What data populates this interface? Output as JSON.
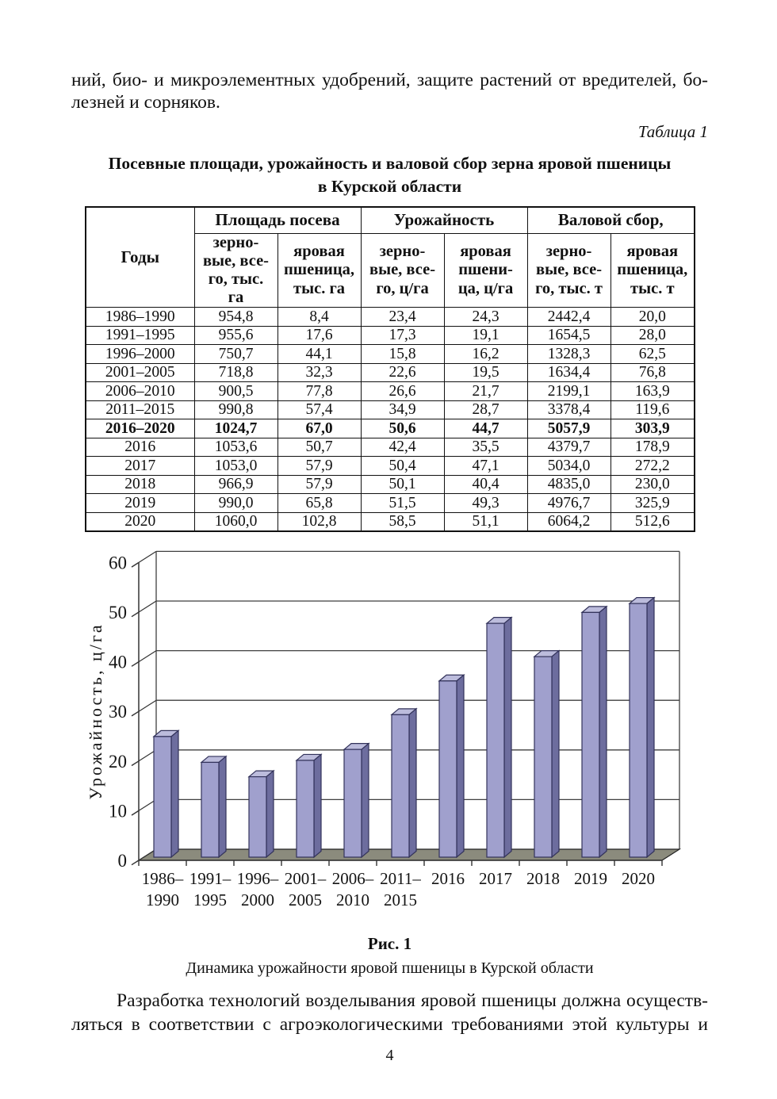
{
  "page": {
    "paragraph_top": [
      "ний, био- и микроэлементных удобрений, защите растений от вредителей, бо-",
      "лезней и сорняков."
    ],
    "table_label": "Таблица 1",
    "table_title": "Посевные площади, урожайность и валовой сбор зерна яровой пшеницы\nв Курской области",
    "figure_label": "Рис. 1",
    "figure_caption": "Динамика урожайности яровой пшеницы в Курской области",
    "paragraph_bottom": [
      "Разработка технологий возделывания яровой пшеницы должна осуществ-",
      "ляться в соответствии с агроэкологическими требованиями этой культуры и"
    ],
    "page_number": "4"
  },
  "table": {
    "corner_header": "Годы",
    "col_groups": [
      {
        "label": "Площадь посева",
        "span": 2
      },
      {
        "label": "Урожайность",
        "span": 2
      },
      {
        "label": "Валовой сбор,",
        "span": 2
      }
    ],
    "sub_headers": [
      "зерно-\nвые, все-\nго, тыс.\nга",
      "яровая\nпшеница,\nтыс. га",
      "зерно-\nвые, все-\nго, ц/га",
      "яровая\nпшени-\nца, ц/га",
      "зерно-\nвые, все-\nго, тыс. т",
      "яровая\nпшеница,\nтыс. т"
    ],
    "rows": [
      {
        "year": "1986–1990",
        "values": [
          "954,8",
          "8,4",
          "23,4",
          "24,3",
          "2442,4",
          "20,0"
        ],
        "emphasis": false
      },
      {
        "year": "1991–1995",
        "values": [
          "955,6",
          "17,6",
          "17,3",
          "19,1",
          "1654,5",
          "28,0"
        ],
        "emphasis": false
      },
      {
        "year": "1996–2000",
        "values": [
          "750,7",
          "44,1",
          "15,8",
          "16,2",
          "1328,3",
          "62,5"
        ],
        "emphasis": false
      },
      {
        "year": "2001–2005",
        "values": [
          "718,8",
          "32,3",
          "22,6",
          "19,5",
          "1634,4",
          "76,8"
        ],
        "emphasis": false
      },
      {
        "year": "2006–2010",
        "values": [
          "900,5",
          "77,8",
          "26,6",
          "21,7",
          "2199,1",
          "163,9"
        ],
        "emphasis": false
      },
      {
        "year": "2011–2015",
        "values": [
          "990,8",
          "57,4",
          "34,9",
          "28,7",
          "3378,4",
          "119,6"
        ],
        "emphasis": false
      },
      {
        "year": "2016–2020",
        "values": [
          "1024,7",
          "67,0",
          "50,6",
          "44,7",
          "5057,9",
          "303,9"
        ],
        "emphasis": true
      },
      {
        "year": "2016",
        "values": [
          "1053,6",
          "50,7",
          "42,4",
          "35,5",
          "4379,7",
          "178,9"
        ],
        "emphasis": false
      },
      {
        "year": "2017",
        "values": [
          "1053,0",
          "57,9",
          "50,4",
          "47,1",
          "5034,0",
          "272,2"
        ],
        "emphasis": false
      },
      {
        "year": "2018",
        "values": [
          "966,9",
          "57,9",
          "50,1",
          "40,4",
          "4835,0",
          "230,0"
        ],
        "emphasis": false
      },
      {
        "year": "2019",
        "values": [
          "990,0",
          "65,8",
          "51,5",
          "49,3",
          "4976,7",
          "325,9"
        ],
        "emphasis": false
      },
      {
        "year": "2020",
        "values": [
          "1060,0",
          "102,8",
          "58,5",
          "51,1",
          "6064,2",
          "512,6"
        ],
        "emphasis": false
      }
    ]
  },
  "chart_data": {
    "type": "bar",
    "style": "3d-column",
    "title": "",
    "xlabel": "",
    "ylabel": "Урожайность, ц/га",
    "ylim": [
      0,
      60
    ],
    "yticks": [
      0,
      10,
      20,
      30,
      40,
      50,
      60
    ],
    "grid": true,
    "legend": "none",
    "categories": [
      "1986–\n1990",
      "1991–\n1995",
      "1996–\n2000",
      "2001–\n2005",
      "2006–\n2010",
      "2011–\n2015",
      "2016",
      "2017",
      "2018",
      "2019",
      "2020"
    ],
    "values": [
      24.3,
      19.1,
      16.2,
      19.5,
      21.7,
      28.7,
      35.5,
      47.1,
      40.4,
      49.3,
      51.1
    ],
    "colors": {
      "bar_front": "#a0a0cd",
      "bar_top": "#bcbcdc",
      "bar_side": "#6d6d9e",
      "bar_outline": "#32325a",
      "floor": "#8b8b7d",
      "grid": "#3f3f3f",
      "axis": "#333333",
      "text": "#141414"
    }
  }
}
